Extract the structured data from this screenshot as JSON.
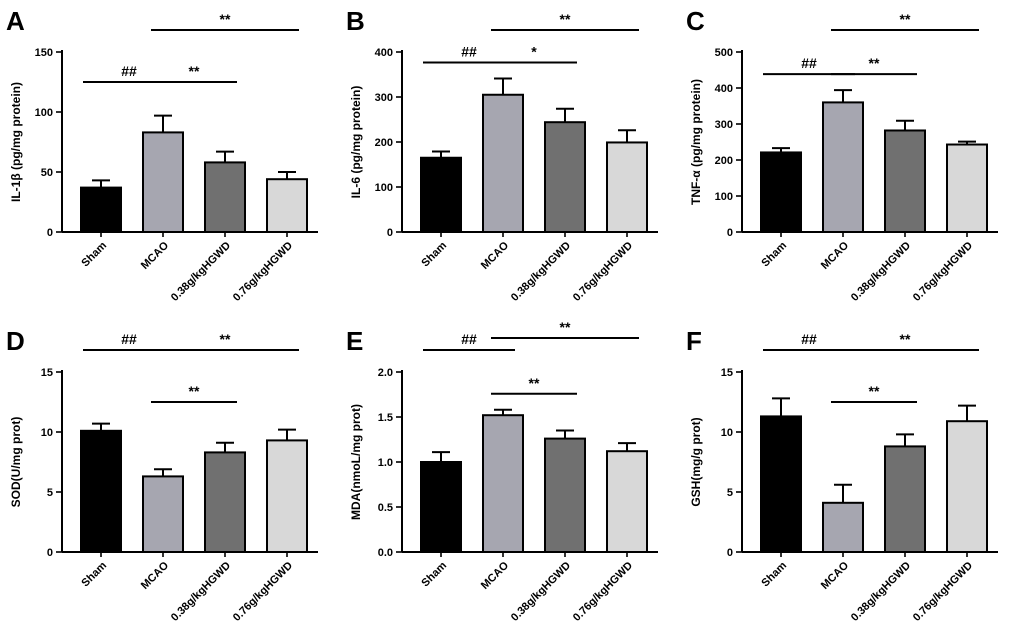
{
  "colors": {
    "bars": [
      "#000000",
      "#a6a6b0",
      "#707070",
      "#d8d8d8"
    ],
    "axis": "#000000"
  },
  "chart_data": [
    {
      "type": "bar",
      "panel": "A",
      "categories": [
        "Sham",
        "MCAO",
        "0.38g/kgHGWD",
        "0.76g/kgHGWD"
      ],
      "values": [
        37,
        83,
        58,
        44
      ],
      "errors": [
        6,
        14,
        9,
        6
      ],
      "ylabel": "IL-1β (pg/mg protein)",
      "ylim": [
        0,
        150
      ],
      "yticks": [
        0,
        50,
        100,
        150
      ],
      "brackets": [
        {
          "from": 0,
          "to": 1,
          "label": "##",
          "level": 0
        },
        {
          "from": 1,
          "to": 2,
          "label": "**",
          "level": 0
        },
        {
          "from": 1,
          "to": 3,
          "label": "**",
          "level": 1
        }
      ]
    },
    {
      "type": "bar",
      "panel": "B",
      "categories": [
        "Sham",
        "MCAO",
        "0.38g/kgHGWD",
        "0.76g/kgHGWD"
      ],
      "values": [
        165,
        305,
        244,
        199
      ],
      "errors": [
        14,
        36,
        30,
        27
      ],
      "ylabel": "IL-6 (pg/mg protein)",
      "ylim": [
        0,
        400
      ],
      "yticks": [
        0,
        100,
        200,
        300,
        400
      ],
      "brackets": [
        {
          "from": 0,
          "to": 1,
          "label": "##",
          "level": 0
        },
        {
          "from": 1,
          "to": 2,
          "label": "*",
          "level": 0
        },
        {
          "from": 1,
          "to": 3,
          "label": "**",
          "level": 1
        }
      ]
    },
    {
      "type": "bar",
      "panel": "C",
      "categories": [
        "Sham",
        "MCAO",
        "0.38g/kgHGWD",
        "0.76g/kgHGWD"
      ],
      "values": [
        221,
        360,
        282,
        243
      ],
      "errors": [
        12,
        34,
        27,
        8
      ],
      "ylabel": "TNF-α (pg/mg protein)",
      "ylim": [
        0,
        500
      ],
      "yticks": [
        0,
        100,
        200,
        300,
        400,
        500
      ],
      "brackets": [
        {
          "from": 0,
          "to": 1,
          "label": "##",
          "level": 0
        },
        {
          "from": 1,
          "to": 2,
          "label": "**",
          "level": 0
        },
        {
          "from": 1,
          "to": 3,
          "label": "**",
          "level": 1
        }
      ]
    },
    {
      "type": "bar",
      "panel": "D",
      "categories": [
        "Sham",
        "MCAO",
        "0.38g/kgHGWD",
        "0.76g/kgHGWD"
      ],
      "values": [
        10.1,
        6.3,
        8.3,
        9.3
      ],
      "errors": [
        0.6,
        0.6,
        0.8,
        0.9
      ],
      "ylabel": "SOD(U/mg prot)",
      "ylim": [
        0,
        15
      ],
      "yticks": [
        0,
        5,
        10,
        15
      ],
      "brackets": [
        {
          "from": 0,
          "to": 1,
          "label": "##",
          "level": 1
        },
        {
          "from": 1,
          "to": 2,
          "label": "**",
          "level": 0
        },
        {
          "from": 1,
          "to": 3,
          "label": "**",
          "level": 1
        }
      ]
    },
    {
      "type": "bar",
      "panel": "E",
      "categories": [
        "Sham",
        "MCAO",
        "0.38g/kgHGWD",
        "0.76g/kgHGWD"
      ],
      "values": [
        1.0,
        1.52,
        1.26,
        1.12
      ],
      "errors": [
        0.11,
        0.06,
        0.09,
        0.09
      ],
      "ylabel": "MDA(nmoL/mg prot)",
      "ylim": [
        0,
        2.0
      ],
      "yticks": [
        "0.0",
        "0.5",
        "1.0",
        "1.5",
        "2.0"
      ],
      "brackets": [
        {
          "from": 0,
          "to": 1,
          "label": "##",
          "level": 1
        },
        {
          "from": 1,
          "to": 2,
          "label": "**",
          "level": 0
        },
        {
          "from": 1,
          "to": 3,
          "label": "**",
          "level": 2
        }
      ]
    },
    {
      "type": "bar",
      "panel": "F",
      "categories": [
        "Sham",
        "MCAO",
        "0.38g/kgHGWD",
        "0.76g/kgHGWD"
      ],
      "values": [
        11.3,
        4.1,
        8.8,
        10.9
      ],
      "errors": [
        1.5,
        1.5,
        1.0,
        1.3
      ],
      "ylabel": "GSH(mg/g prot)",
      "ylim": [
        0,
        15
      ],
      "yticks": [
        0,
        5,
        10,
        15
      ],
      "brackets": [
        {
          "from": 0,
          "to": 1,
          "label": "##",
          "level": 1
        },
        {
          "from": 1,
          "to": 2,
          "label": "**",
          "level": 0
        },
        {
          "from": 1,
          "to": 3,
          "label": "**",
          "level": 1
        }
      ]
    }
  ]
}
